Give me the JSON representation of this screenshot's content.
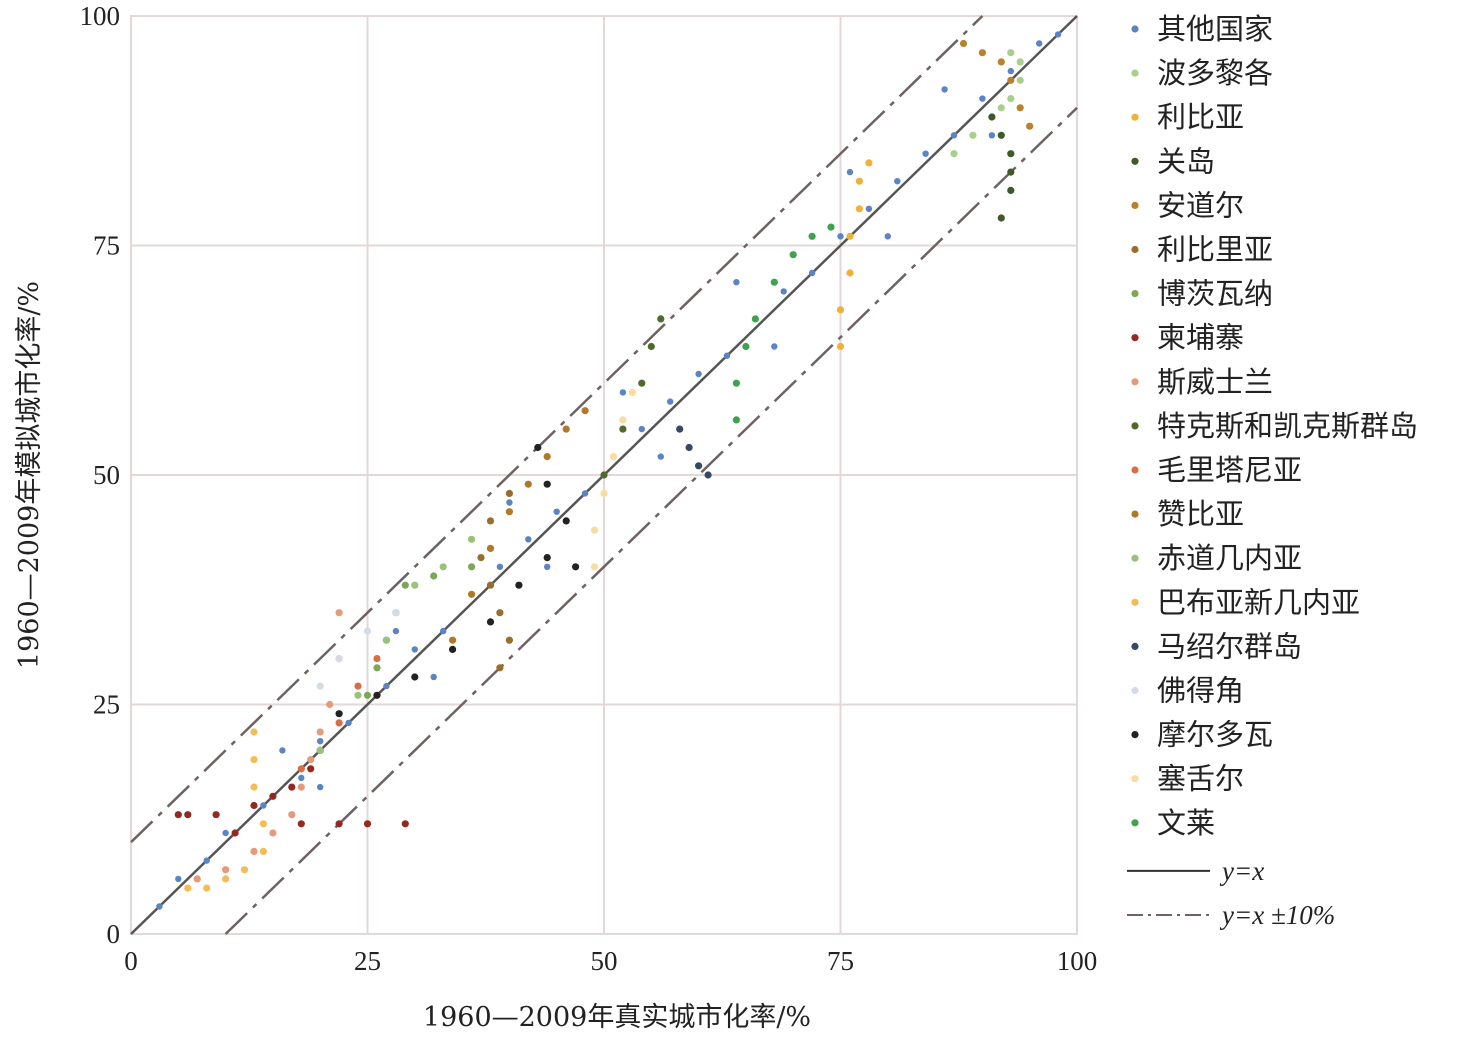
{
  "chart_data": {
    "type": "scatter",
    "xlabel": "1960—2009年真实城市化率/%",
    "ylabel": "1960—2009年模拟城市化率/%",
    "xlim": [
      0,
      100
    ],
    "ylim": [
      0,
      100
    ],
    "xticks": [
      "0",
      "25",
      "50",
      "75",
      "100"
    ],
    "yticks": [
      "0",
      "25",
      "50",
      "75",
      "100"
    ],
    "grid": true,
    "legend_position": "right",
    "series": [
      {
        "name": "其他国家",
        "color": "#5b84c4",
        "points": [
          [
            3,
            3
          ],
          [
            5,
            6
          ],
          [
            8,
            8
          ],
          [
            10,
            11
          ],
          [
            14,
            14
          ],
          [
            18,
            17
          ],
          [
            20,
            21
          ],
          [
            23,
            23
          ],
          [
            27,
            27
          ],
          [
            30,
            31
          ],
          [
            33,
            33
          ],
          [
            36,
            37
          ],
          [
            39,
            40
          ],
          [
            42,
            43
          ],
          [
            45,
            46
          ],
          [
            48,
            48
          ],
          [
            51,
            52
          ],
          [
            54,
            55
          ],
          [
            57,
            58
          ],
          [
            60,
            61
          ],
          [
            63,
            63
          ],
          [
            66,
            67
          ],
          [
            69,
            70
          ],
          [
            72,
            72
          ],
          [
            75,
            76
          ],
          [
            78,
            79
          ],
          [
            81,
            82
          ],
          [
            84,
            85
          ],
          [
            87,
            87
          ],
          [
            90,
            91
          ],
          [
            93,
            94
          ],
          [
            96,
            97
          ],
          [
            98,
            98
          ],
          [
            16,
            20
          ],
          [
            28,
            33
          ],
          [
            40,
            47
          ],
          [
            52,
            59
          ],
          [
            64,
            71
          ],
          [
            76,
            83
          ],
          [
            86,
            92
          ],
          [
            20,
            16
          ],
          [
            32,
            28
          ],
          [
            44,
            40
          ],
          [
            56,
            52
          ],
          [
            68,
            64
          ],
          [
            80,
            76
          ],
          [
            91,
            87
          ]
        ]
      },
      {
        "name": "波多黎各",
        "color": "#a9cf8e",
        "points": [
          [
            87,
            85
          ],
          [
            89,
            87
          ],
          [
            91,
            89
          ],
          [
            92,
            90
          ],
          [
            93,
            91
          ],
          [
            94,
            93
          ],
          [
            94,
            95
          ],
          [
            93,
            96
          ]
        ]
      },
      {
        "name": "利比亚",
        "color": "#f0b13a",
        "points": [
          [
            75,
            64
          ],
          [
            75,
            68
          ],
          [
            76,
            72
          ],
          [
            76,
            76
          ],
          [
            77,
            79
          ],
          [
            77,
            82
          ],
          [
            78,
            84
          ]
        ]
      },
      {
        "name": "关岛",
        "color": "#3e5a28",
        "points": [
          [
            91,
            89
          ],
          [
            92,
            87
          ],
          [
            93,
            85
          ],
          [
            93,
            83
          ],
          [
            93,
            81
          ],
          [
            92,
            78
          ]
        ]
      },
      {
        "name": "安道尔",
        "color": "#b8822c",
        "points": [
          [
            88,
            97
          ],
          [
            90,
            96
          ],
          [
            92,
            95
          ],
          [
            93,
            93
          ],
          [
            94,
            90
          ],
          [
            95,
            88
          ]
        ]
      },
      {
        "name": "利比里亚",
        "color": "#9a6d2e",
        "points": [
          [
            39,
            29
          ],
          [
            40,
            32
          ],
          [
            39,
            35
          ],
          [
            38,
            38
          ],
          [
            37,
            41
          ],
          [
            38,
            45
          ],
          [
            40,
            48
          ]
        ]
      },
      {
        "name": "博茨瓦纳",
        "color": "#7ea657",
        "points": [
          [
            25,
            26
          ],
          [
            26,
            29
          ],
          [
            27,
            32
          ],
          [
            28,
            35
          ],
          [
            29,
            38
          ],
          [
            32,
            39
          ],
          [
            36,
            40
          ]
        ]
      },
      {
        "name": "柬埔寨",
        "color": "#922a22",
        "points": [
          [
            5,
            13
          ],
          [
            6,
            13
          ],
          [
            9,
            13
          ],
          [
            11,
            11
          ],
          [
            13,
            14
          ],
          [
            15,
            15
          ],
          [
            17,
            16
          ],
          [
            19,
            18
          ],
          [
            20,
            20
          ],
          [
            18,
            12
          ],
          [
            22,
            12
          ],
          [
            25,
            12
          ],
          [
            29,
            12
          ]
        ]
      },
      {
        "name": "斯威士兰",
        "color": "#e69a7c",
        "points": [
          [
            7,
            6
          ],
          [
            10,
            7
          ],
          [
            13,
            9
          ],
          [
            15,
            11
          ],
          [
            17,
            13
          ],
          [
            18,
            16
          ],
          [
            19,
            19
          ],
          [
            20,
            22
          ],
          [
            21,
            25
          ],
          [
            22,
            30
          ],
          [
            22,
            35
          ]
        ]
      },
      {
        "name": "特克斯和凯克斯群岛",
        "color": "#4f6b2c",
        "points": [
          [
            50,
            50
          ],
          [
            52,
            55
          ],
          [
            54,
            60
          ],
          [
            55,
            64
          ],
          [
            56,
            67
          ]
        ]
      },
      {
        "name": "毛里塔尼亚",
        "color": "#d96d44",
        "points": [
          [
            18,
            18
          ],
          [
            20,
            20
          ],
          [
            22,
            23
          ],
          [
            24,
            27
          ],
          [
            26,
            30
          ]
        ]
      },
      {
        "name": "赞比亚",
        "color": "#ae7a2a",
        "points": [
          [
            34,
            32
          ],
          [
            36,
            37
          ],
          [
            38,
            42
          ],
          [
            40,
            46
          ],
          [
            42,
            49
          ],
          [
            44,
            52
          ],
          [
            46,
            55
          ],
          [
            48,
            57
          ]
        ]
      },
      {
        "name": "赤道几内亚",
        "color": "#99c27a",
        "points": [
          [
            20,
            20
          ],
          [
            24,
            26
          ],
          [
            27,
            32
          ],
          [
            30,
            38
          ],
          [
            33,
            40
          ],
          [
            36,
            43
          ]
        ]
      },
      {
        "name": "巴布亚新几内亚",
        "color": "#f2bd55",
        "points": [
          [
            13,
            22
          ],
          [
            13,
            19
          ],
          [
            13,
            16
          ],
          [
            14,
            12
          ],
          [
            14,
            9
          ],
          [
            12,
            7
          ],
          [
            10,
            6
          ],
          [
            8,
            5
          ],
          [
            6,
            5
          ]
        ]
      },
      {
        "name": "马绍尔群岛",
        "color": "#374862",
        "points": [
          [
            58,
            55
          ],
          [
            59,
            53
          ],
          [
            60,
            51
          ],
          [
            61,
            50
          ]
        ]
      },
      {
        "name": "佛得角",
        "color": "#d4dbe6",
        "points": [
          [
            20,
            27
          ],
          [
            22,
            30
          ],
          [
            25,
            33
          ],
          [
            28,
            35
          ]
        ]
      },
      {
        "name": "摩尔多瓦",
        "color": "#222222",
        "points": [
          [
            22,
            24
          ],
          [
            26,
            26
          ],
          [
            30,
            28
          ],
          [
            34,
            31
          ],
          [
            38,
            34
          ],
          [
            41,
            38
          ],
          [
            44,
            41
          ],
          [
            47,
            40
          ],
          [
            46,
            45
          ],
          [
            44,
            49
          ],
          [
            43,
            53
          ]
        ]
      },
      {
        "name": "塞舌尔",
        "color": "#f8dca0",
        "points": [
          [
            49,
            40
          ],
          [
            49,
            44
          ],
          [
            50,
            48
          ],
          [
            51,
            52
          ],
          [
            52,
            56
          ],
          [
            53,
            59
          ]
        ]
      },
      {
        "name": "文莱",
        "color": "#3fa34d",
        "points": [
          [
            64,
            56
          ],
          [
            64,
            60
          ],
          [
            65,
            64
          ],
          [
            66,
            67
          ],
          [
            68,
            71
          ],
          [
            70,
            74
          ],
          [
            72,
            76
          ],
          [
            74,
            77
          ]
        ]
      }
    ],
    "reference_lines": [
      {
        "label_var": "y",
        "label_eq": "=",
        "label_rhs": "x",
        "label_full": "y=x",
        "style": "solid",
        "color": "#555555"
      },
      {
        "label_var": "y",
        "label_eq": "=",
        "label_rhs": "x",
        "label_suffix": " ±10%",
        "label_full": "y=x ±10%",
        "style": "dash-dot",
        "color": "#6e6262"
      }
    ]
  }
}
